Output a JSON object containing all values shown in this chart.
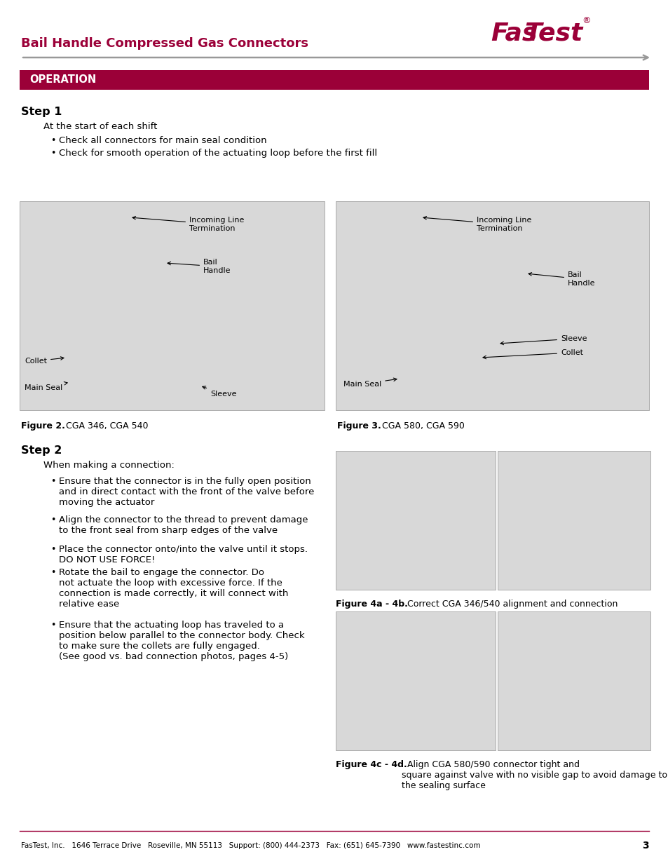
{
  "title_text": "Bail Handle Compressed Gas Connectors",
  "title_color": "#9B0038",
  "logo_color": "#9B0038",
  "operation_text": "OPERATION",
  "operation_bg": "#9B0038",
  "operation_text_color": "#FFFFFF",
  "step1_title": "Step 1",
  "step1_intro": "At the start of each shift",
  "step1_bullets": [
    "Check all connectors for main seal condition",
    "Check for smooth operation of the actuating loop before the first fill"
  ],
  "fig2_caption_bold": "Figure 2.",
  "fig2_caption_rest": "  CGA 346, CGA 540",
  "fig3_caption_bold": "Figure 3.",
  "fig3_caption_rest": "  CGA 580, CGA 590",
  "step2_title": "Step 2",
  "step2_intro": "When making a connection:",
  "step2_bullets": [
    "Ensure that the connector is in the fully open position\nand in direct contact with the front of the valve before\nmoving the actuator",
    "Align the connector to the thread to prevent damage\nto the front seal from sharp edges of the valve",
    "Place the connector onto/into the valve until it stops.\nDO NOT USE FORCE!",
    "Rotate the bail to engage the connector. Do\nnot actuate the loop with excessive force. If the\nconnection is made correctly, it will connect with\nrelative ease",
    "Ensure that the actuating loop has traveled to a\nposition below parallel to the connector body. Check\nto make sure the collets are fully engaged.\n(See good vs. bad connection photos, pages 4-5)"
  ],
  "fig4ab_caption_bold": "Figure 4a - 4b.",
  "fig4ab_caption_rest": "  Correct CGA 346/540 alignment and connection",
  "fig4cd_caption_bold": "Figure 4c - 4d.",
  "fig4cd_caption_rest": "  Align CGA 580/590 connector tight and\nsquare against valve with no visible gap to avoid damage to\nthe sealing surface",
  "footer_text": "FasTest, Inc.   1646 Terrace Drive   Roseville, MN 55113   Support: (800) 444-2373   Fax: (651) 645-7390   www.fastestinc.com",
  "footer_page": "3",
  "footer_line_color": "#9B0038",
  "bg_color": "#FFFFFF",
  "text_color": "#000000",
  "img_bg": "#D8D8D8",
  "img_border": "#AAAAAA",
  "arrow_line_color": "#999999"
}
